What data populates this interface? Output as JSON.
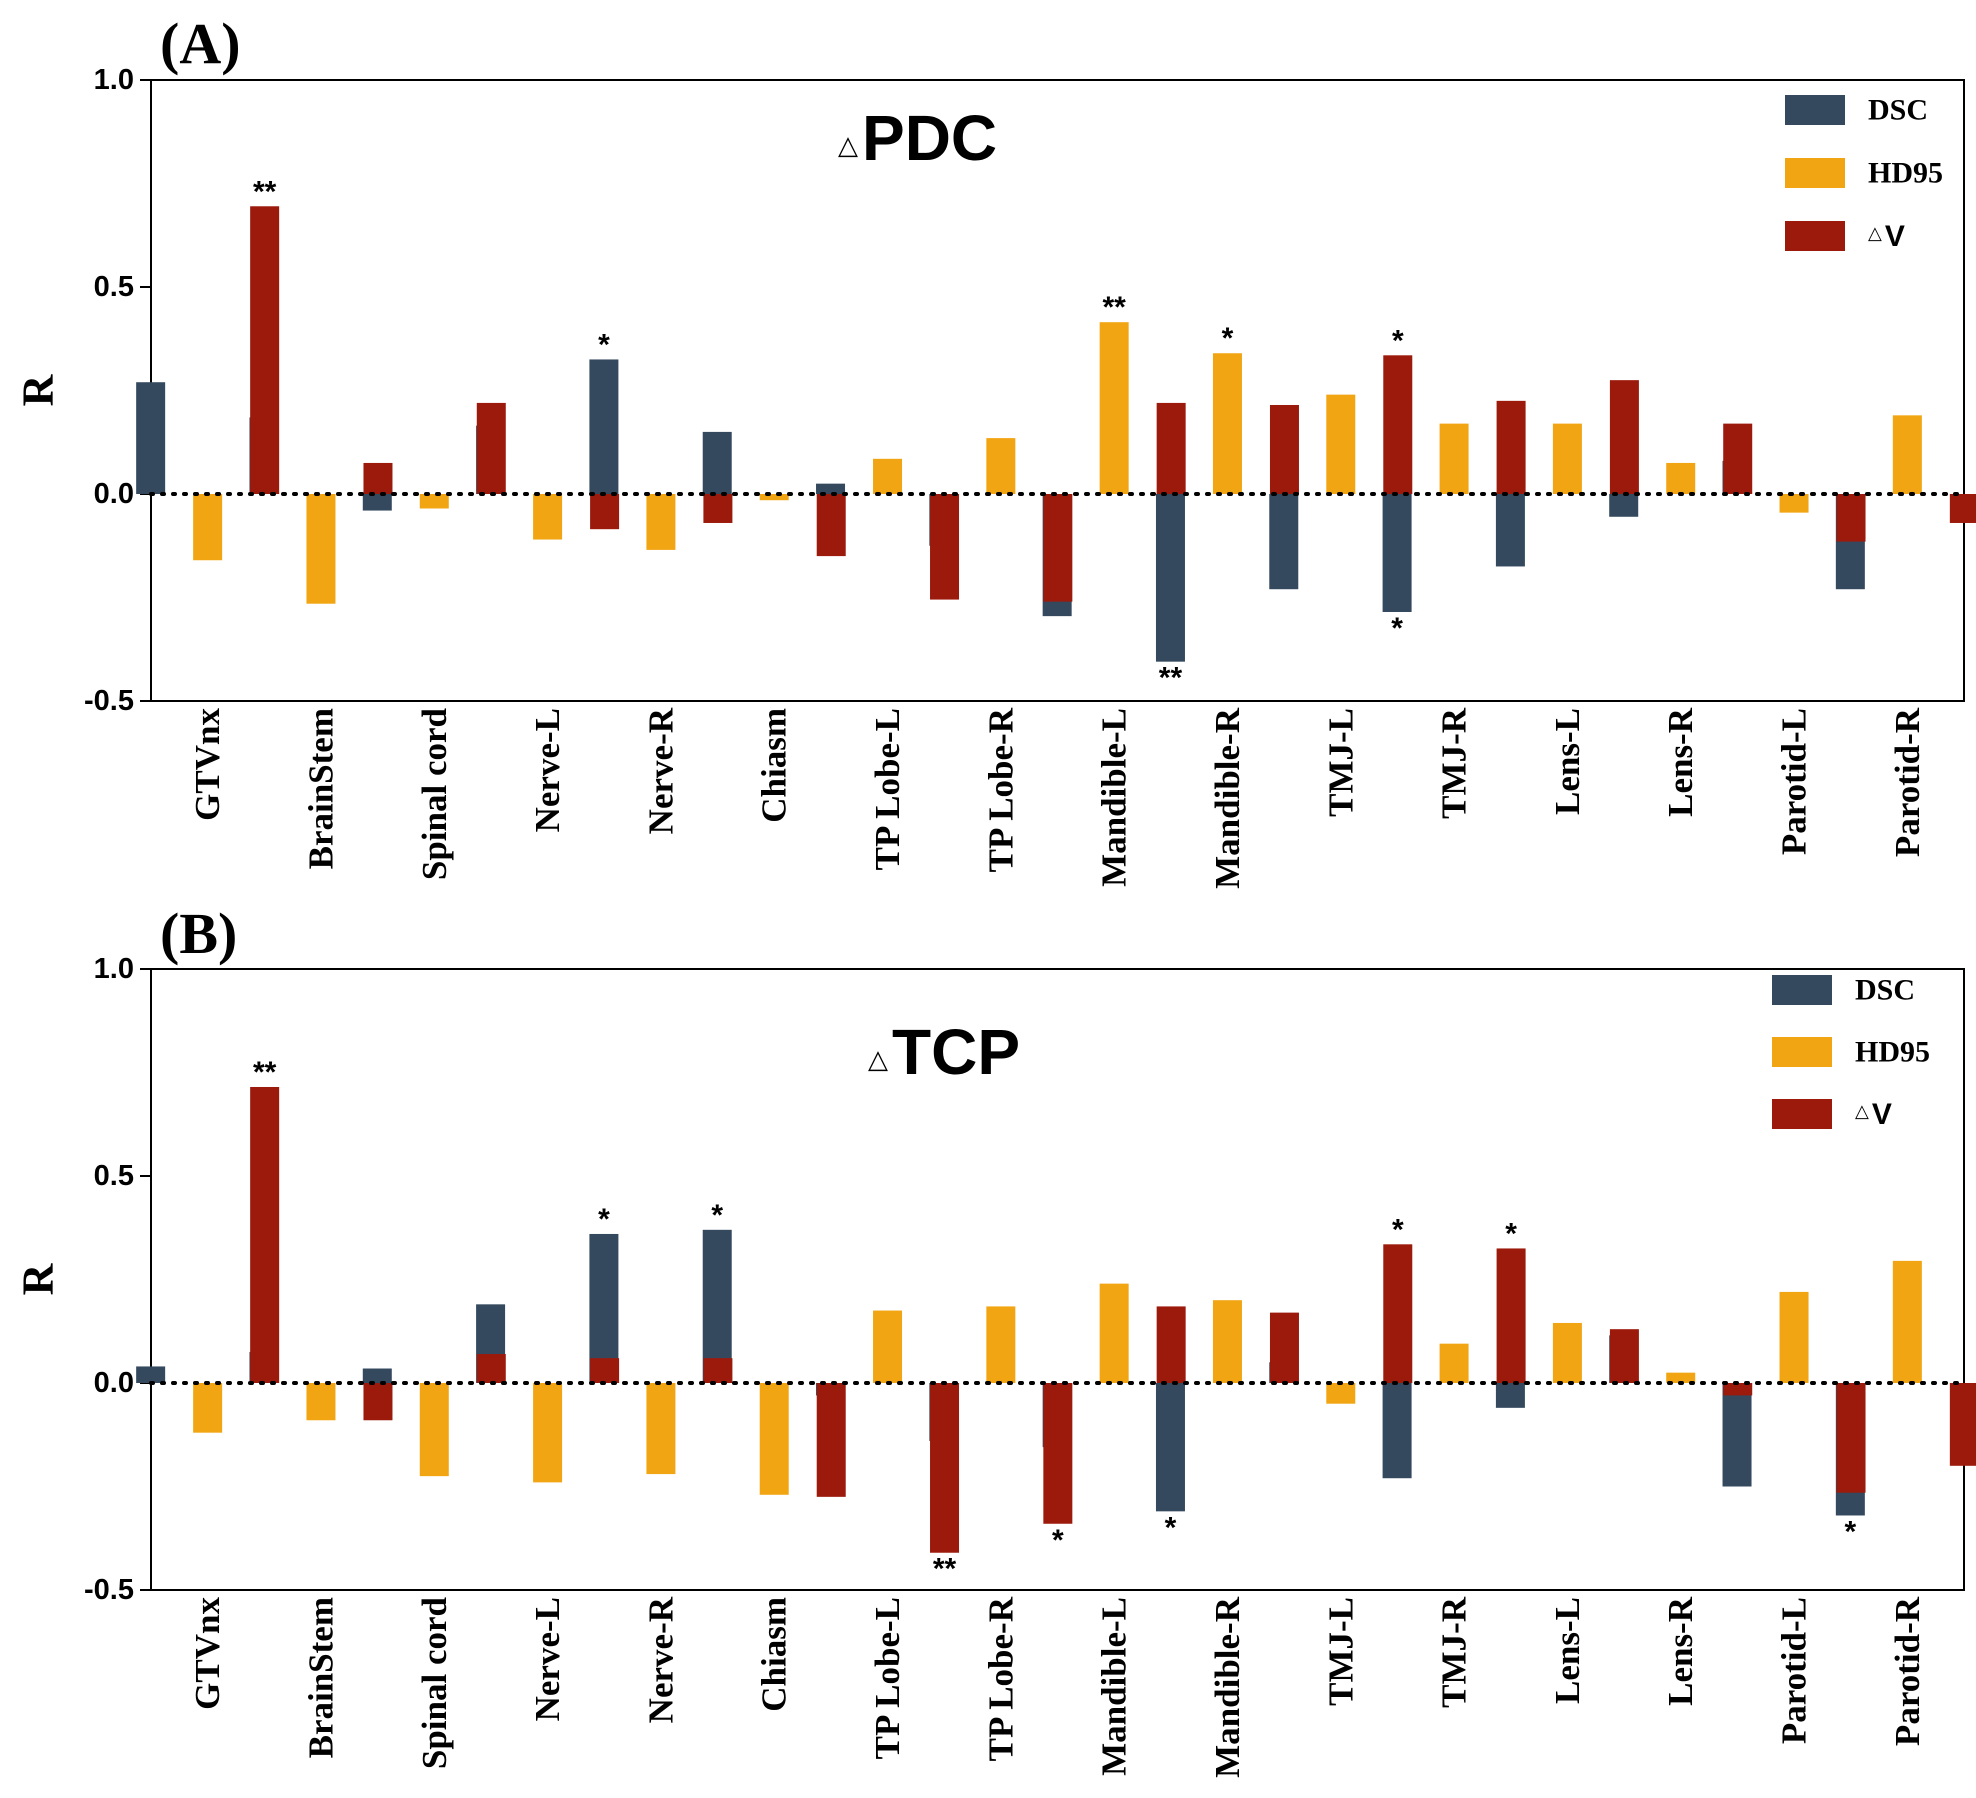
{
  "chart_data": [
    {
      "type": "bar",
      "panel_label": "(A)",
      "title_prefix": "△",
      "title": "PDC",
      "xlabel": "",
      "ylabel": "R",
      "ylim": [
        -0.5,
        1.0
      ],
      "yticks": [
        "1.0",
        "0.5",
        "0.0",
        "-0.5"
      ],
      "ytick_values": [
        1.0,
        0.5,
        0.0,
        -0.5
      ],
      "grid": false,
      "legend_position": "top-right",
      "categories": [
        "GTVnx",
        "BrainStem",
        "Spinal cord",
        "Nerve-L",
        "Nerve-R",
        "Chiasm",
        "TP Lobe-L",
        "TP Lobe-R",
        "Mandible-L",
        "Mandible-R",
        "TMJ-L",
        "TMJ-R",
        "Lens-L",
        "Lens-R",
        "Parotid-L",
        "Parotid-R"
      ],
      "series": [
        {
          "name": "DSC",
          "legend_prefix": "",
          "legend_label": "DSC",
          "color": "#34495e",
          "values": [
            0.27,
            0.185,
            -0.04,
            0.165,
            0.325,
            0.15,
            0.025,
            -0.125,
            -0.295,
            -0.405,
            -0.23,
            -0.285,
            -0.175,
            -0.055,
            0.08,
            -0.23
          ],
          "sig": [
            "",
            "",
            "",
            "",
            "*",
            "",
            "",
            "",
            "",
            "**",
            "",
            "*",
            "",
            "",
            "",
            ""
          ]
        },
        {
          "name": "HD95",
          "legend_prefix": "",
          "legend_label": "HD95",
          "color": "#f2a512",
          "values": [
            -0.16,
            -0.265,
            -0.035,
            -0.11,
            -0.135,
            -0.015,
            0.085,
            0.135,
            0.415,
            0.34,
            0.24,
            0.17,
            0.17,
            0.075,
            -0.045,
            0.19
          ],
          "sig": [
            "",
            "",
            "",
            "",
            "",
            "",
            "",
            "",
            "**",
            "*",
            "",
            "",
            "",
            "",
            "",
            ""
          ]
        },
        {
          "name": "△V",
          "legend_prefix": "△",
          "legend_label": "V",
          "color": "#9c1a0c",
          "values": [
            0.695,
            0.075,
            0.22,
            -0.085,
            -0.07,
            -0.15,
            -0.255,
            -0.26,
            0.22,
            0.215,
            0.335,
            0.225,
            0.275,
            0.17,
            -0.115,
            -0.07
          ],
          "sig": [
            "**",
            "",
            "",
            "",
            "",
            "",
            "",
            "",
            "",
            "",
            "*",
            "",
            "",
            "",
            "",
            ""
          ]
        }
      ]
    },
    {
      "type": "bar",
      "panel_label": "(B)",
      "title_prefix": "△",
      "title": "TCP",
      "xlabel": "",
      "ylabel": "R",
      "ylim": [
        -0.5,
        1.0
      ],
      "yticks": [
        "1.0",
        "0.5",
        "0.0",
        "-0.5"
      ],
      "ytick_values": [
        1.0,
        0.5,
        0.0,
        -0.5
      ],
      "grid": false,
      "legend_position": "top-right",
      "categories": [
        "GTVnx",
        "BrainStem",
        "Spinal cord",
        "Nerve-L",
        "Nerve-R",
        "Chiasm",
        "TP Lobe-L",
        "TP Lobe-R",
        "Mandible-L",
        "Mandible-R",
        "TMJ-L",
        "TMJ-R",
        "Lens-L",
        "Lens-R",
        "Parotid-L",
        "Parotid-R"
      ],
      "series": [
        {
          "name": "DSC",
          "legend_prefix": "",
          "legend_label": "DSC",
          "color": "#34495e",
          "values": [
            0.04,
            0.075,
            0.035,
            0.19,
            0.36,
            0.37,
            -0.03,
            -0.14,
            -0.155,
            -0.31,
            0.05,
            -0.23,
            -0.06,
            0.115,
            -0.25,
            -0.32
          ],
          "sig": [
            "",
            "",
            "",
            "",
            "*",
            "*",
            "",
            "",
            "",
            "*",
            "",
            "",
            "",
            "",
            "",
            "*"
          ]
        },
        {
          "name": "HD95",
          "legend_prefix": "",
          "legend_label": "HD95",
          "color": "#f2a512",
          "values": [
            -0.12,
            -0.09,
            -0.225,
            -0.24,
            -0.22,
            -0.27,
            0.175,
            0.185,
            0.24,
            0.2,
            -0.05,
            0.095,
            0.145,
            0.025,
            0.22,
            0.295
          ],
          "sig": [
            "",
            "",
            "",
            "",
            "",
            "",
            "",
            "",
            "",
            "",
            "",
            "",
            "",
            "",
            "",
            ""
          ]
        },
        {
          "name": "△V",
          "legend_prefix": "△",
          "legend_label": "V",
          "color": "#9c1a0c",
          "values": [
            0.715,
            -0.09,
            0.07,
            0.06,
            0.06,
            -0.275,
            -0.41,
            -0.34,
            0.185,
            0.17,
            0.335,
            0.325,
            0.13,
            -0.03,
            -0.265,
            -0.2
          ],
          "sig": [
            "**",
            "",
            "",
            "",
            "",
            "",
            "**",
            "*",
            "",
            "",
            "*",
            "*",
            "",
            "",
            "",
            ""
          ]
        }
      ]
    }
  ]
}
